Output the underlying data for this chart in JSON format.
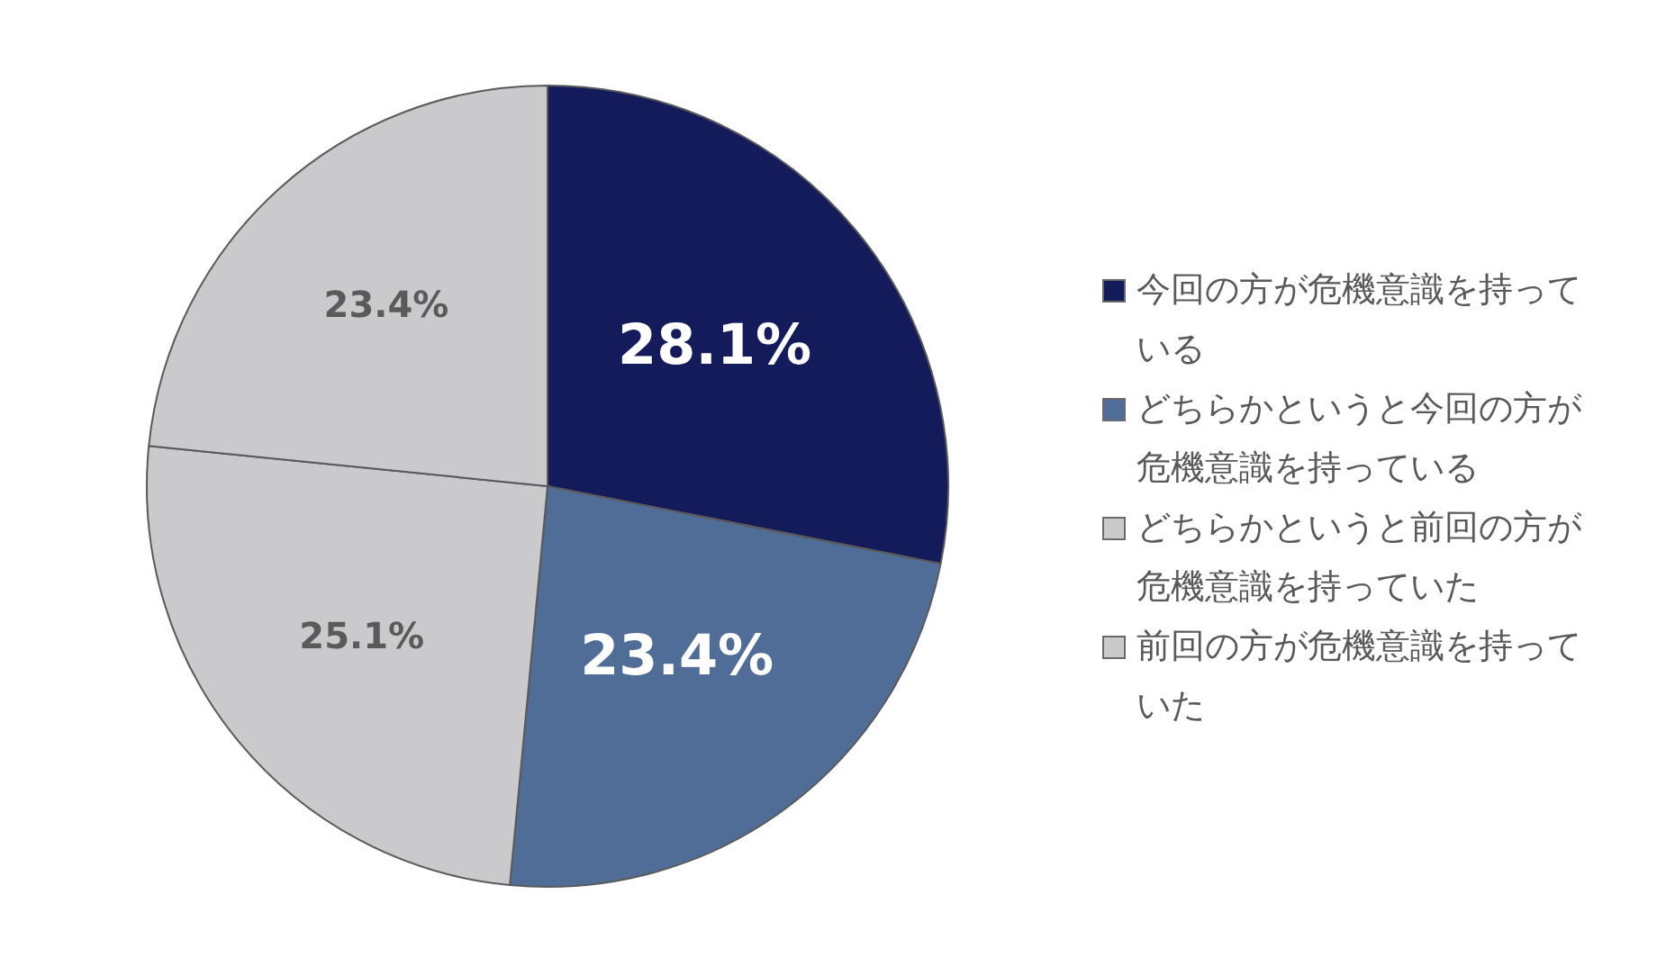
{
  "chart_data": {
    "type": "pie",
    "categories": [
      "今回の方が危機意識を持っている",
      "どちらかというと今回の方が危機意識を持っている",
      "どちらかというと前回の方が危機意識を持っていた",
      "前回の方が危機意識を持っていた"
    ],
    "values": [
      28.1,
      23.4,
      25.1,
      23.4
    ],
    "value_labels": [
      "28.1%",
      "23.4%",
      "25.1%",
      "23.4%"
    ],
    "colors": [
      "#141b5a",
      "#4f6d96",
      "#cac9cc",
      "#cac9cc"
    ],
    "legend": "right"
  }
}
